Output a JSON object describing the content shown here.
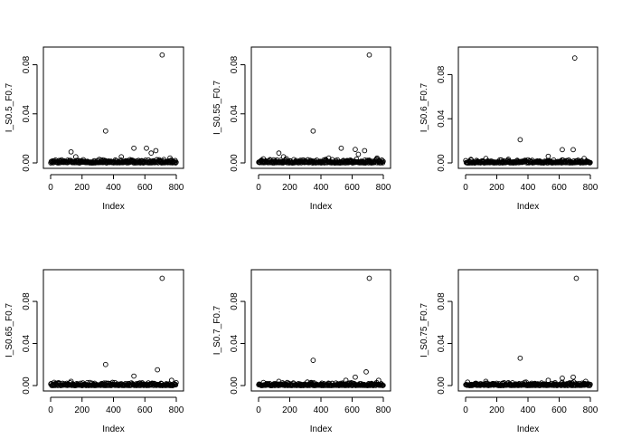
{
  "chart_data": [
    {
      "type": "scatter",
      "xlabel": "Index",
      "ylabel": "I_S0.5_F0.7",
      "xlim": [
        0,
        800
      ],
      "ylim": [
        0,
        0.09
      ],
      "x_ticks": [
        "0",
        "200",
        "400",
        "600",
        "800"
      ],
      "y_ticks": [
        "0.00",
        "0.04",
        "0.08"
      ],
      "y_tick_values": [
        0,
        0.04,
        0.08
      ],
      "grid": false,
      "outliers": [
        [
          130,
          0.009
        ],
        [
          160,
          0.005
        ],
        [
          350,
          0.026
        ],
        [
          450,
          0.005
        ],
        [
          530,
          0.012
        ],
        [
          610,
          0.012
        ],
        [
          640,
          0.008
        ],
        [
          670,
          0.01
        ],
        [
          710,
          0.088
        ],
        [
          760,
          0.004
        ]
      ]
    },
    {
      "type": "scatter",
      "xlabel": "Index",
      "ylabel": "I_S0.55_F0.7",
      "xlim": [
        0,
        800
      ],
      "ylim": [
        0,
        0.09
      ],
      "x_ticks": [
        "0",
        "200",
        "400",
        "600",
        "800"
      ],
      "y_ticks": [
        "0.00",
        "0.04",
        "0.08"
      ],
      "y_tick_values": [
        0,
        0.04,
        0.08
      ],
      "grid": false,
      "outliers": [
        [
          130,
          0.008
        ],
        [
          160,
          0.005
        ],
        [
          350,
          0.026
        ],
        [
          450,
          0.004
        ],
        [
          530,
          0.012
        ],
        [
          620,
          0.011
        ],
        [
          640,
          0.007
        ],
        [
          680,
          0.01
        ],
        [
          710,
          0.088
        ],
        [
          760,
          0.004
        ]
      ]
    },
    {
      "type": "scatter",
      "xlabel": "Index",
      "ylabel": "I_S0.6_F0.7",
      "xlim": [
        0,
        800
      ],
      "ylim": [
        0,
        0.1
      ],
      "x_ticks": [
        "0",
        "200",
        "400",
        "600",
        "800"
      ],
      "y_ticks": [
        "0.00",
        "0.04",
        "0.08"
      ],
      "y_tick_values": [
        0,
        0.04,
        0.08
      ],
      "grid": false,
      "outliers": [
        [
          130,
          0.004
        ],
        [
          350,
          0.021
        ],
        [
          530,
          0.006
        ],
        [
          620,
          0.012
        ],
        [
          690,
          0.012
        ],
        [
          700,
          0.095
        ],
        [
          760,
          0.004
        ]
      ]
    },
    {
      "type": "scatter",
      "xlabel": "Index",
      "ylabel": "I_S0.65_F0.7",
      "xlim": [
        0,
        800
      ],
      "ylim": [
        0,
        0.105
      ],
      "x_ticks": [
        "0",
        "200",
        "400",
        "600",
        "800"
      ],
      "y_ticks": [
        "0.00",
        "0.04",
        "0.08"
      ],
      "y_tick_values": [
        0,
        0.04,
        0.08
      ],
      "grid": false,
      "outliers": [
        [
          130,
          0.004
        ],
        [
          350,
          0.02
        ],
        [
          530,
          0.009
        ],
        [
          680,
          0.015
        ],
        [
          710,
          0.102
        ],
        [
          770,
          0.005
        ]
      ]
    },
    {
      "type": "scatter",
      "xlabel": "Index",
      "ylabel": "I_S0.7_F0.7",
      "xlim": [
        0,
        800
      ],
      "ylim": [
        0,
        0.105
      ],
      "x_ticks": [
        "0",
        "200",
        "400",
        "600",
        "800"
      ],
      "y_ticks": [
        "0.00",
        "0.04",
        "0.08"
      ],
      "y_tick_values": [
        0,
        0.04,
        0.08
      ],
      "grid": false,
      "outliers": [
        [
          130,
          0.004
        ],
        [
          350,
          0.024
        ],
        [
          560,
          0.005
        ],
        [
          620,
          0.008
        ],
        [
          690,
          0.013
        ],
        [
          710,
          0.102
        ],
        [
          770,
          0.005
        ]
      ]
    },
    {
      "type": "scatter",
      "xlabel": "Index",
      "ylabel": "I_S0.75_F0.7",
      "xlim": [
        0,
        800
      ],
      "ylim": [
        0,
        0.105
      ],
      "x_ticks": [
        "0",
        "200",
        "400",
        "600",
        "800"
      ],
      "y_ticks": [
        "0.00",
        "0.04",
        "0.08"
      ],
      "y_tick_values": [
        0,
        0.04,
        0.08
      ],
      "grid": false,
      "outliers": [
        [
          130,
          0.004
        ],
        [
          350,
          0.026
        ],
        [
          530,
          0.005
        ],
        [
          620,
          0.007
        ],
        [
          690,
          0.008
        ],
        [
          710,
          0.102
        ],
        [
          770,
          0.004
        ]
      ]
    }
  ],
  "point_count": 800,
  "baseline_max": 0.0035,
  "colors": {
    "marker": "#000000",
    "axis": "#000000",
    "background": "#ffffff"
  }
}
